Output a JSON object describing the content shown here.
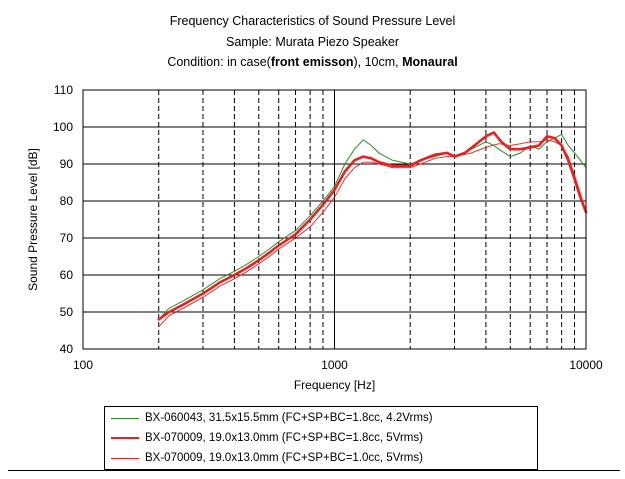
{
  "title": {
    "line1": "Frequency Characteristics of Sound Pressure Level",
    "line2": "Sample: Murata Piezo Speaker",
    "line3_prefix": "Condition:  in case(",
    "line3_bold1": "front emisson",
    "line3_mid": "), 10cm, ",
    "line3_bold2": "Monaural"
  },
  "chart_data": {
    "type": "line",
    "xlabel": "Frequency  [Hz]",
    "ylabel": "Sound Pressure Level  [dB]",
    "xscale": "log",
    "xlim": [
      100,
      10000
    ],
    "ylim": [
      40,
      110
    ],
    "xticks": [
      "100",
      "1000",
      "10000"
    ],
    "yticks": [
      "40",
      "50",
      "60",
      "70",
      "80",
      "90",
      "100",
      "110"
    ],
    "grid": true,
    "legend_position": "bottom",
    "series": [
      {
        "name": "BX-060043, 31.5x15.5mm (FC+SP+BC=1.8cc, 4.2Vrms)",
        "color": "#2e8b2e",
        "width": 1,
        "points": [
          [
            200,
            48
          ],
          [
            220,
            51
          ],
          [
            250,
            53
          ],
          [
            300,
            56
          ],
          [
            350,
            59
          ],
          [
            400,
            61
          ],
          [
            450,
            63
          ],
          [
            500,
            65
          ],
          [
            550,
            67
          ],
          [
            600,
            69
          ],
          [
            700,
            72
          ],
          [
            800,
            76
          ],
          [
            900,
            80
          ],
          [
            1000,
            84
          ],
          [
            1100,
            90
          ],
          [
            1200,
            94
          ],
          [
            1300,
            96.5
          ],
          [
            1400,
            95
          ],
          [
            1500,
            93
          ],
          [
            1700,
            91
          ],
          [
            2000,
            90
          ],
          [
            2200,
            91
          ],
          [
            2500,
            92
          ],
          [
            2800,
            93
          ],
          [
            3000,
            92
          ],
          [
            3500,
            94
          ],
          [
            4000,
            96
          ],
          [
            4300,
            95
          ],
          [
            4500,
            94
          ],
          [
            5000,
            92
          ],
          [
            5500,
            93
          ],
          [
            6000,
            95
          ],
          [
            6500,
            94
          ],
          [
            7000,
            96
          ],
          [
            7500,
            97
          ],
          [
            8000,
            98
          ],
          [
            8500,
            95
          ],
          [
            9000,
            93
          ],
          [
            9500,
            91
          ],
          [
            10000,
            89
          ]
        ]
      },
      {
        "name": "BX-070009, 19.0x13.0mm (FC+SP+BC=1.8cc, 5Vrms)",
        "color": "#e82020",
        "width": 2.6,
        "points": [
          [
            200,
            48
          ],
          [
            220,
            50
          ],
          [
            250,
            52
          ],
          [
            300,
            55
          ],
          [
            350,
            58
          ],
          [
            400,
            60
          ],
          [
            450,
            62
          ],
          [
            500,
            64
          ],
          [
            550,
            66
          ],
          [
            600,
            68
          ],
          [
            700,
            71
          ],
          [
            800,
            75
          ],
          [
            900,
            79
          ],
          [
            1000,
            83
          ],
          [
            1100,
            88
          ],
          [
            1200,
            91
          ],
          [
            1300,
            92
          ],
          [
            1400,
            91.5
          ],
          [
            1500,
            90.5
          ],
          [
            1700,
            89.5
          ],
          [
            2000,
            89.5
          ],
          [
            2200,
            91
          ],
          [
            2500,
            92.5
          ],
          [
            2800,
            93
          ],
          [
            3000,
            92
          ],
          [
            3300,
            93
          ],
          [
            3600,
            95
          ],
          [
            4000,
            97.5
          ],
          [
            4300,
            98.5
          ],
          [
            4600,
            96
          ],
          [
            5000,
            94
          ],
          [
            5500,
            94
          ],
          [
            6000,
            94.5
          ],
          [
            6500,
            95
          ],
          [
            7000,
            97.5
          ],
          [
            7500,
            97
          ],
          [
            8000,
            95
          ],
          [
            8500,
            91
          ],
          [
            9000,
            86
          ],
          [
            9500,
            81
          ],
          [
            10000,
            77
          ]
        ]
      },
      {
        "name": "BX-070009, 19.0x13.0mm (FC+SP+BC=1.0cc, 5Vrms)",
        "color": "#e82020",
        "width": 0.9,
        "points": [
          [
            200,
            46
          ],
          [
            220,
            49
          ],
          [
            250,
            51
          ],
          [
            300,
            54
          ],
          [
            350,
            57
          ],
          [
            400,
            59
          ],
          [
            450,
            61
          ],
          [
            500,
            63
          ],
          [
            550,
            65
          ],
          [
            600,
            67
          ],
          [
            700,
            70
          ],
          [
            800,
            73
          ],
          [
            900,
            77
          ],
          [
            1000,
            81
          ],
          [
            1100,
            86
          ],
          [
            1200,
            89
          ],
          [
            1300,
            90.5
          ],
          [
            1400,
            90.5
          ],
          [
            1500,
            90
          ],
          [
            1700,
            89
          ],
          [
            2000,
            89
          ],
          [
            2200,
            90
          ],
          [
            2500,
            91.5
          ],
          [
            2800,
            92
          ],
          [
            3000,
            92
          ],
          [
            3500,
            93
          ],
          [
            4000,
            94.5
          ],
          [
            4500,
            95.5
          ],
          [
            5000,
            95
          ],
          [
            5500,
            95.5
          ],
          [
            6000,
            96
          ],
          [
            6500,
            96
          ],
          [
            7000,
            96.5
          ],
          [
            7500,
            96
          ],
          [
            8000,
            95
          ],
          [
            8500,
            92
          ],
          [
            9000,
            87
          ],
          [
            9500,
            82
          ],
          [
            10000,
            77
          ]
        ]
      }
    ]
  }
}
